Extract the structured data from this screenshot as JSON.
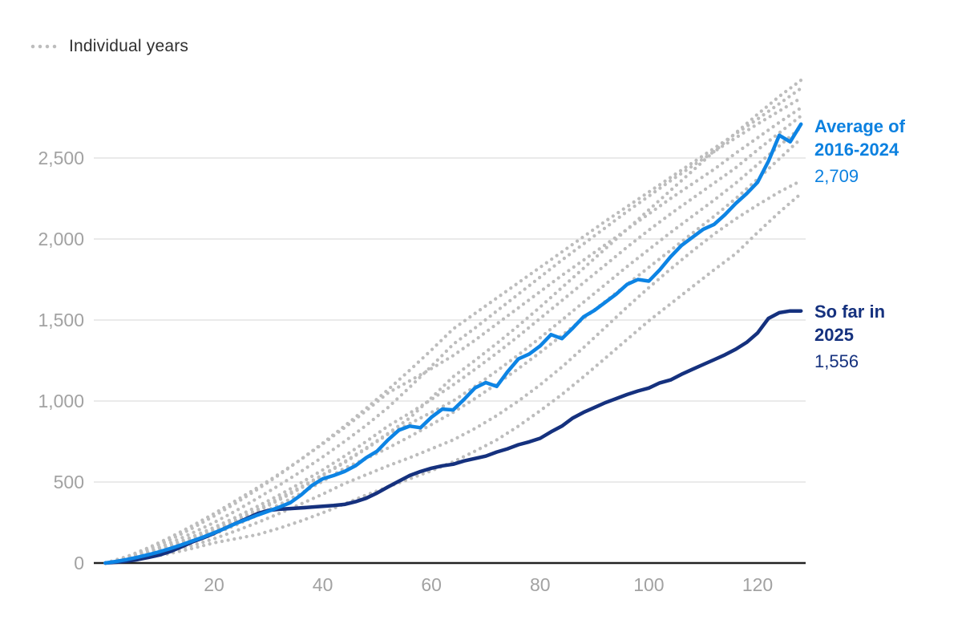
{
  "legend": {
    "label": "Individual years"
  },
  "annotations": {
    "average": {
      "label_line1": "Average of",
      "label_line2": "2016-2024",
      "value": "2,709"
    },
    "current": {
      "label_line1": "So far in",
      "label_line2": "2025",
      "value": "1,556"
    }
  },
  "colors": {
    "average_line": "#0d84e4",
    "current_line": "#15317e",
    "individual_years": "#bdbdbd",
    "gridline": "#e3e3e3",
    "axis": "#222222",
    "tick_label": "#a2a2a2"
  },
  "chart_data": {
    "type": "line",
    "title": "",
    "xlabel": "",
    "ylabel": "",
    "xlim": [
      0,
      128
    ],
    "ylim": [
      0,
      3000
    ],
    "grid": "horizontal",
    "legend_position": "top-left",
    "xticks": [
      20,
      40,
      60,
      80,
      100,
      120
    ],
    "yticks": [
      {
        "value": 0,
        "label": "0"
      },
      {
        "value": 500,
        "label": "500"
      },
      {
        "value": 1000,
        "label": "1,000"
      },
      {
        "value": 1500,
        "label": "1,500"
      },
      {
        "value": 2000,
        "label": "2,000"
      },
      {
        "value": 2500,
        "label": "2,500"
      }
    ],
    "series": {
      "average": {
        "name": "Average of 2016-2024",
        "final_value": 2709,
        "x_start": 0,
        "x_step": 2,
        "values": [
          0,
          10,
          22,
          36,
          52,
          70,
          90,
          112,
          136,
          160,
          186,
          214,
          244,
          270,
          296,
          320,
          345,
          372,
          420,
          478,
          520,
          540,
          565,
          600,
          650,
          690,
          760,
          820,
          845,
          835,
          900,
          950,
          945,
          1010,
          1080,
          1114,
          1090,
          1180,
          1260,
          1290,
          1340,
          1410,
          1385,
          1450,
          1520,
          1560,
          1610,
          1660,
          1720,
          1750,
          1740,
          1810,
          1890,
          1960,
          2010,
          2060,
          2090,
          2150,
          2220,
          2280,
          2350,
          2480,
          2640,
          2600,
          2709
        ]
      },
      "current": {
        "name": "So far in 2025",
        "final_value": 1556,
        "x_start": 0,
        "x_step": 2,
        "values": [
          0,
          5,
          12,
          22,
          35,
          50,
          72,
          100,
          130,
          155,
          183,
          215,
          245,
          275,
          305,
          325,
          332,
          336,
          340,
          345,
          350,
          355,
          362,
          378,
          400,
          432,
          470,
          505,
          540,
          565,
          585,
          600,
          610,
          630,
          645,
          660,
          685,
          705,
          730,
          748,
          770,
          810,
          845,
          895,
          930,
          960,
          990,
          1015,
          1040,
          1062,
          1080,
          1112,
          1130,
          1165,
          1195,
          1225,
          1255,
          1285,
          1320,
          1362,
          1420,
          1510,
          1545,
          1556,
          1556
        ]
      },
      "individual_years": [
        {
          "x_start": 0,
          "x_step": 4,
          "values": [
            0,
            35,
            85,
            145,
            215,
            290,
            370,
            455,
            545,
            640,
            740,
            845,
            955,
            1070,
            1190,
            1315,
            1445,
            1540,
            1635,
            1730,
            1825,
            1920,
            2015,
            2110,
            2200,
            2290,
            2380,
            2470,
            2560,
            2650,
            2740,
            2835,
            2930
          ]
        },
        {
          "x_start": 0,
          "x_step": 4,
          "values": [
            0,
            25,
            60,
            100,
            150,
            205,
            265,
            330,
            400,
            470,
            545,
            625,
            710,
            800,
            895,
            1020,
            1150,
            1250,
            1355,
            1465,
            1580,
            1700,
            1820,
            1940,
            2060,
            2180,
            2300,
            2420,
            2540,
            2655,
            2770,
            2880,
            2980
          ]
        },
        {
          "x_start": 0,
          "x_step": 4,
          "values": [
            0,
            30,
            72,
            125,
            185,
            250,
            322,
            400,
            480,
            565,
            655,
            750,
            850,
            960,
            1085,
            1215,
            1350,
            1450,
            1555,
            1660,
            1765,
            1870,
            1970,
            2070,
            2170,
            2265,
            2360,
            2450,
            2540,
            2625,
            2710,
            2790,
            2870
          ]
        },
        {
          "x_start": 0,
          "x_step": 4,
          "values": [
            0,
            40,
            95,
            160,
            230,
            305,
            385,
            465,
            550,
            640,
            735,
            835,
            940,
            1050,
            1125,
            1200,
            1280,
            1375,
            1475,
            1575,
            1675,
            1775,
            1870,
            1965,
            2060,
            2155,
            2250,
            2340,
            2430,
            2530,
            2625,
            2720,
            2810
          ]
        },
        {
          "x_start": 0,
          "x_step": 4,
          "values": [
            0,
            28,
            65,
            110,
            162,
            220,
            282,
            350,
            420,
            495,
            575,
            660,
            750,
            845,
            925,
            1010,
            1100,
            1195,
            1295,
            1400,
            1510,
            1620,
            1730,
            1840,
            1950,
            2055,
            2155,
            2250,
            2345,
            2440,
            2550,
            2655,
            2760
          ]
        },
        {
          "x_start": 0,
          "x_step": 4,
          "values": [
            0,
            22,
            52,
            92,
            140,
            195,
            255,
            320,
            390,
            462,
            540,
            620,
            705,
            795,
            860,
            930,
            1000,
            1090,
            1185,
            1285,
            1390,
            1500,
            1610,
            1720,
            1830,
            1935,
            2040,
            2140,
            2240,
            2345,
            2460,
            2575,
            2690
          ]
        },
        {
          "x_start": 0,
          "x_step": 4,
          "values": [
            0,
            20,
            48,
            84,
            128,
            178,
            234,
            295,
            360,
            430,
            505,
            585,
            645,
            710,
            780,
            855,
            930,
            1015,
            1105,
            1200,
            1300,
            1405,
            1510,
            1615,
            1720,
            1825,
            1930,
            2035,
            2140,
            2250,
            2370,
            2495,
            2620
          ]
        },
        {
          "x_start": 0,
          "x_step": 4,
          "values": [
            0,
            18,
            42,
            72,
            108,
            150,
            198,
            250,
            306,
            365,
            425,
            490,
            545,
            600,
            650,
            705,
            760,
            830,
            910,
            1000,
            1100,
            1210,
            1330,
            1455,
            1580,
            1700,
            1815,
            1925,
            2030,
            2125,
            2210,
            2290,
            2360
          ]
        },
        {
          "x_start": 0,
          "x_step": 4,
          "values": [
            0,
            15,
            35,
            60,
            90,
            125,
            150,
            175,
            215,
            260,
            310,
            365,
            420,
            470,
            520,
            570,
            625,
            690,
            760,
            845,
            940,
            1040,
            1150,
            1265,
            1380,
            1495,
            1600,
            1705,
            1810,
            1910,
            2040,
            2165,
            2280
          ]
        }
      ]
    }
  }
}
